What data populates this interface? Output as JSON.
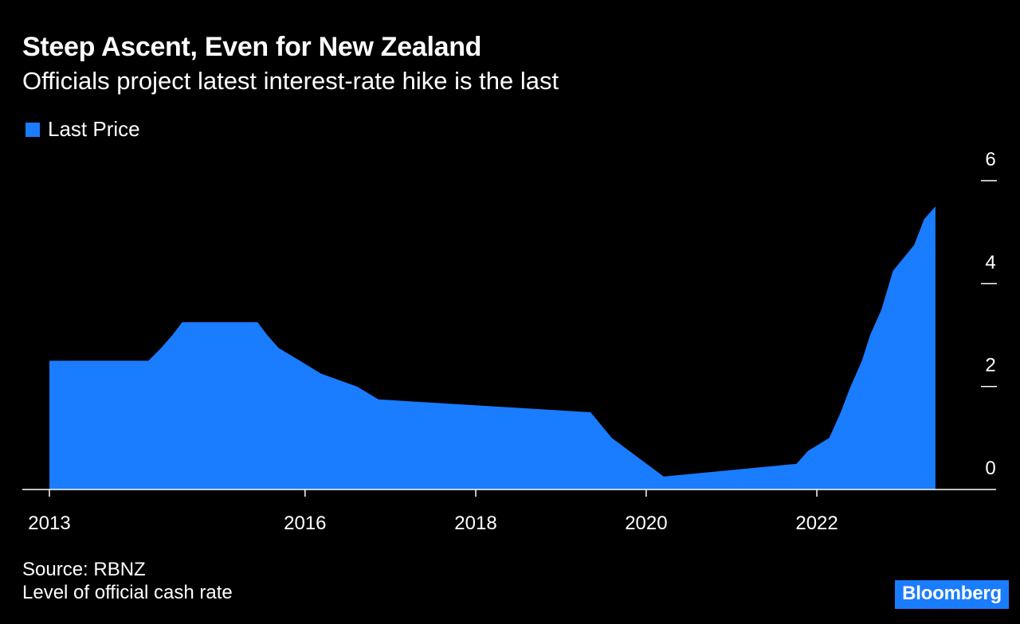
{
  "header": {
    "title": "Steep Ascent, Even for New Zealand",
    "subtitle": "Officials project latest interest-rate hike is the last"
  },
  "footer": {
    "source": "Source: RBNZ",
    "note": "Level of official cash rate",
    "logo": "Bloomberg"
  },
  "colors": {
    "background": "#000000",
    "series": "#1a7cff",
    "text": "#ffffff",
    "logo_bg": "#1a7cff"
  },
  "chart_data": {
    "type": "area",
    "title": "Steep Ascent, Even for New Zealand",
    "subtitle": "Officials project latest interest-rate hike is the last",
    "xlabel": "",
    "ylabel": "",
    "xlim": [
      "2013-01-01",
      "2023-10-01"
    ],
    "ylim": [
      0,
      6
    ],
    "y_axis_side": "right",
    "x_ticks": [
      "2013",
      "2016",
      "2018",
      "2020",
      "2022"
    ],
    "y_ticks": [
      "0",
      "2",
      "4",
      "6"
    ],
    "grid": false,
    "legend": {
      "position": "top-left",
      "entries": [
        "Last Price"
      ]
    },
    "series": [
      {
        "name": "Last Price",
        "points": [
          [
            "2013-01-01",
            2.5
          ],
          [
            "2014-03-01",
            2.5
          ],
          [
            "2014-04-24",
            2.75
          ],
          [
            "2014-06-12",
            3.0
          ],
          [
            "2014-07-24",
            3.25
          ],
          [
            "2015-06-11",
            3.25
          ],
          [
            "2015-07-23",
            3.0
          ],
          [
            "2015-09-10",
            2.75
          ],
          [
            "2015-12-10",
            2.5
          ],
          [
            "2016-03-10",
            2.25
          ],
          [
            "2016-08-11",
            2.0
          ],
          [
            "2016-11-10",
            1.75
          ],
          [
            "2019-05-08",
            1.5
          ],
          [
            "2019-08-07",
            1.0
          ],
          [
            "2020-03-16",
            0.25
          ],
          [
            "2021-10-06",
            0.5
          ],
          [
            "2021-11-24",
            0.75
          ],
          [
            "2022-02-23",
            1.0
          ],
          [
            "2022-04-13",
            1.5
          ],
          [
            "2022-05-25",
            2.0
          ],
          [
            "2022-07-13",
            2.5
          ],
          [
            "2022-08-17",
            3.0
          ],
          [
            "2022-10-05",
            3.5
          ],
          [
            "2022-11-23",
            4.25
          ],
          [
            "2023-02-22",
            4.75
          ],
          [
            "2023-04-05",
            5.25
          ],
          [
            "2023-05-24",
            5.5
          ]
        ]
      }
    ]
  }
}
